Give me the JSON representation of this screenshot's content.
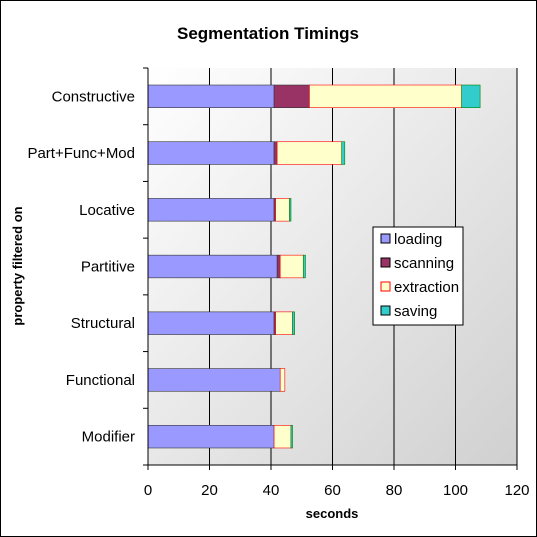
{
  "chart_data": {
    "type": "bar",
    "orientation": "horizontal",
    "stacked": true,
    "title": "Segmentation Timings",
    "xlabel": "seconds",
    "ylabel": "property filtered on",
    "xlim": [
      0,
      120
    ],
    "xticks": [
      0,
      20,
      40,
      60,
      80,
      100,
      120
    ],
    "grid": "vertical",
    "legend_position": "right",
    "categories": [
      "Constructive",
      "Part+Func+Mod",
      "Locative",
      "Partitive",
      "Structural",
      "Functional",
      "Modifier"
    ],
    "series": [
      {
        "name": "loading",
        "color": "#9999ff",
        "values": [
          41,
          41,
          41,
          42,
          41,
          43,
          41
        ]
      },
      {
        "name": "scanning",
        "color": "#993366",
        "values": [
          11.5,
          1,
          0.5,
          1,
          0.5,
          0,
          0
        ]
      },
      {
        "name": "extraction",
        "color": "#ffffcc",
        "values": [
          49.5,
          21,
          4.5,
          7.5,
          5.5,
          1.5,
          5.5
        ]
      },
      {
        "name": "saving",
        "color": "#33cccc",
        "values": [
          6,
          1,
          0.5,
          0.7,
          0.7,
          0,
          0.5
        ]
      }
    ]
  }
}
